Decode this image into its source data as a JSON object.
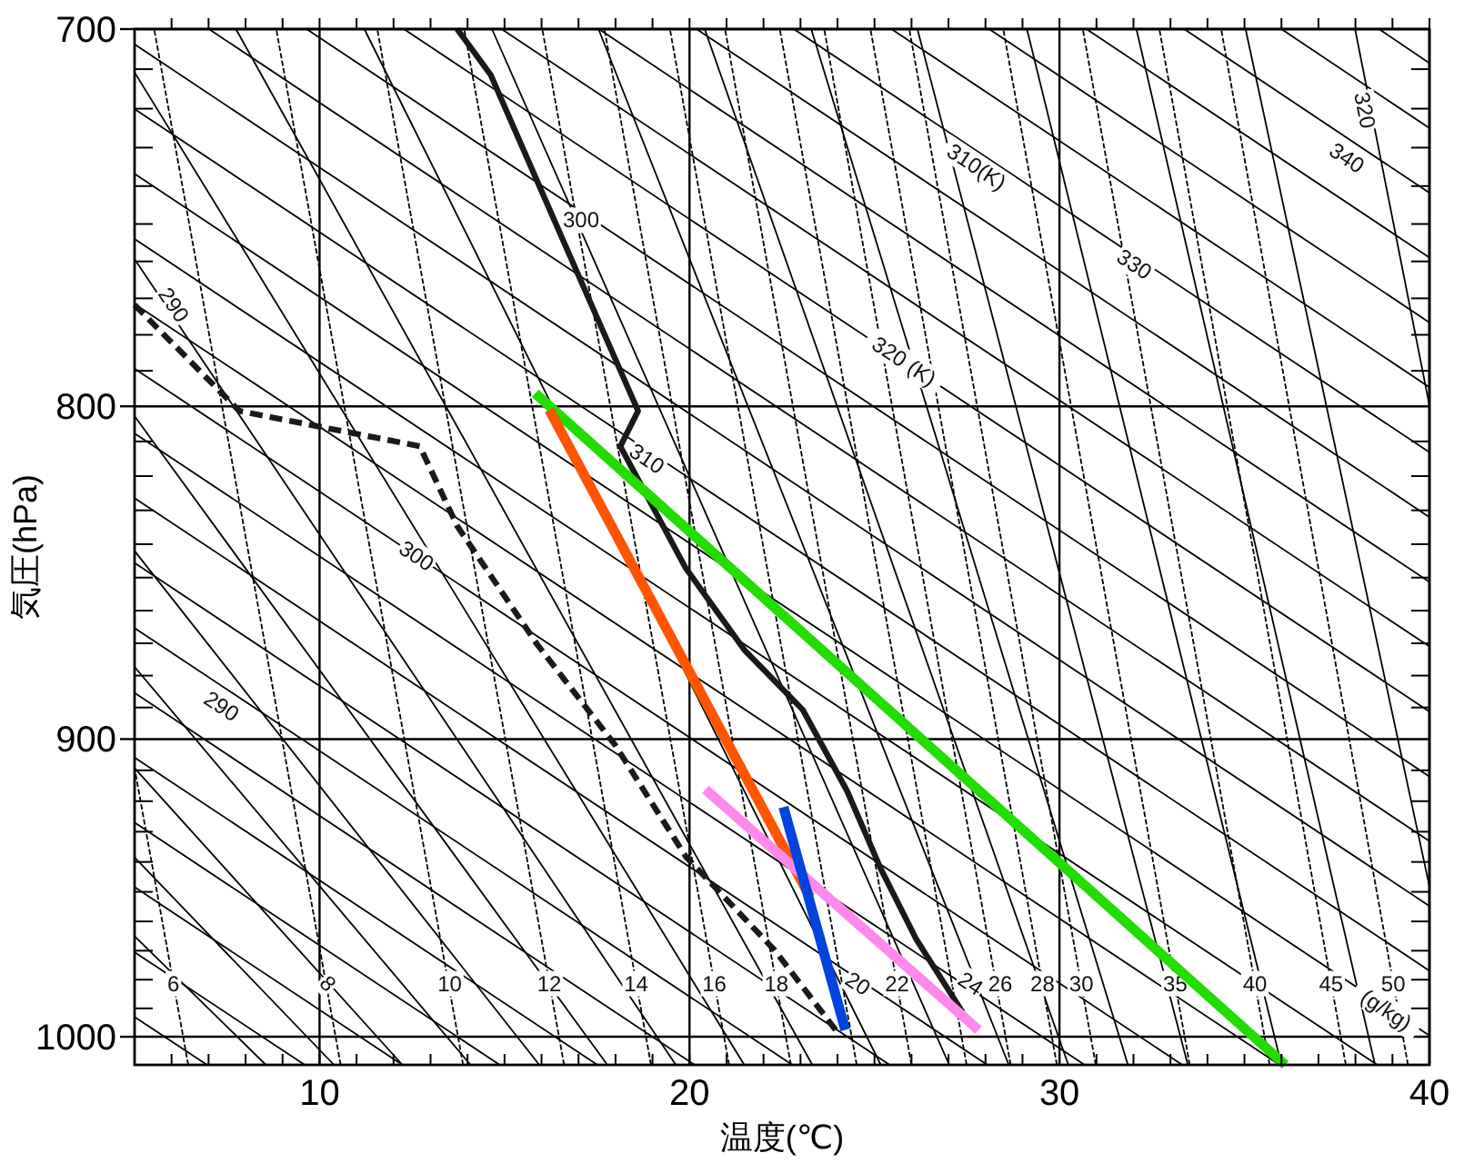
{
  "chart_data": {
    "type": "line",
    "xlabel": "温度(℃)",
    "ylabel": "気圧(hPa)",
    "xlim": [
      5,
      40
    ],
    "ylim": [
      1010,
      700
    ],
    "log": "y",
    "grid": true,
    "xticks": [
      {
        "value": 6,
        "label": null
      },
      {
        "value": 7,
        "label": null
      },
      {
        "value": 8,
        "label": null
      },
      {
        "value": 9,
        "label": null
      },
      10,
      {
        "value": 11,
        "label": null
      },
      {
        "value": 12,
        "label": null
      },
      {
        "value": 13,
        "label": null
      },
      {
        "value": 14,
        "label": null
      },
      {
        "value": 15,
        "label": null
      },
      {
        "value": 16,
        "label": null
      },
      {
        "value": 17,
        "label": null
      },
      {
        "value": 18,
        "label": null
      },
      {
        "value": 19,
        "label": null
      },
      20,
      {
        "value": 21,
        "label": null
      },
      {
        "value": 22,
        "label": null
      },
      {
        "value": 23,
        "label": null
      },
      {
        "value": 24,
        "label": null
      },
      {
        "value": 25,
        "label": null
      },
      {
        "value": 26,
        "label": null
      },
      {
        "value": 27,
        "label": null
      },
      {
        "value": 28,
        "label": null
      },
      {
        "value": 29,
        "label": null
      },
      30,
      {
        "value": 31,
        "label": null
      },
      {
        "value": 32,
        "label": null
      },
      {
        "value": 33,
        "label": null
      },
      {
        "value": 34,
        "label": null
      },
      {
        "value": 35,
        "label": null
      },
      {
        "value": 36,
        "label": null
      },
      {
        "value": 37,
        "label": null
      },
      {
        "value": 38,
        "label": null
      },
      {
        "value": 39,
        "label": null
      },
      40
    ],
    "yticks": [
      700,
      {
        "value": 710,
        "label": null
      },
      {
        "value": 720,
        "label": null
      },
      {
        "value": 730,
        "label": null
      },
      {
        "value": 740,
        "label": null
      },
      {
        "value": 750,
        "label": null
      },
      {
        "value": 760,
        "label": null
      },
      {
        "value": 770,
        "label": null
      },
      {
        "value": 780,
        "label": null
      },
      {
        "value": 790,
        "label": null
      },
      800,
      {
        "value": 810,
        "label": null
      },
      {
        "value": 820,
        "label": null
      },
      {
        "value": 830,
        "label": null
      },
      {
        "value": 840,
        "label": null
      },
      {
        "value": 850,
        "label": null
      },
      {
        "value": 860,
        "label": null
      },
      {
        "value": 870,
        "label": null
      },
      {
        "value": 880,
        "label": null
      },
      {
        "value": 890,
        "label": null
      },
      900,
      {
        "value": 910,
        "label": null
      },
      {
        "value": 920,
        "label": null
      },
      {
        "value": 930,
        "label": null
      },
      {
        "value": 940,
        "label": null
      },
      {
        "value": 950,
        "label": null
      },
      {
        "value": 960,
        "label": null
      },
      {
        "value": 970,
        "label": null
      },
      {
        "value": 980,
        "label": null
      },
      {
        "value": 990,
        "label": null
      },
      1000,
      {
        "value": 1010,
        "label": null
      }
    ],
    "annotations": [
      {
        "text": "290",
        "x": 7.35,
        "y": 889.6
      },
      {
        "text": "300",
        "x": 12.62,
        "y": 843.5
      },
      {
        "text": "310",
        "x": 18.85,
        "y": 815
      },
      {
        "text": "320 (K)",
        "x": 25.8,
        "y": 787.4
      },
      {
        "text": "330",
        "x": 32.02,
        "y": 760.8
      },
      {
        "text": "340",
        "x": 37.77,
        "y": 732.7
      },
      {
        "text": "290",
        "x": 6.05,
        "y": 771.8
      },
      {
        "text": "300",
        "x": 17.07,
        "y": 749
      },
      {
        "text": "310(K)",
        "x": 27.76,
        "y": 735
      },
      {
        "text": "320",
        "x": 38.25,
        "y": 720.4
      },
      {
        "text": "6",
        "x": 6.05,
        "y": 981.4
      },
      {
        "text": "8",
        "x": 10.22,
        "y": 981.4
      },
      {
        "text": "10",
        "x": 13.52,
        "y": 981.4
      },
      {
        "text": "12",
        "x": 16.21,
        "y": 981.4
      },
      {
        "text": "14",
        "x": 18.56,
        "y": 981.4
      },
      {
        "text": "16",
        "x": 20.67,
        "y": 981.4
      },
      {
        "text": "18",
        "x": 22.35,
        "y": 981.4
      },
      {
        "text": "20",
        "x": 24.55,
        "y": 981.4
      },
      {
        "text": "22",
        "x": 25.61,
        "y": 981.4
      },
      {
        "text": "24",
        "x": 27.6,
        "y": 981.4
      },
      {
        "text": "26",
        "x": 28.4,
        "y": 981.4
      },
      {
        "text": "28",
        "x": 29.54,
        "y": 981.4
      },
      {
        "text": "30",
        "x": 30.59,
        "y": 981.4
      },
      {
        "text": "35",
        "x": 33.13,
        "y": 981.4
      },
      {
        "text": "40",
        "x": 35.28,
        "y": 981.4
      },
      {
        "text": "45",
        "x": 37.34,
        "y": 981.4
      },
      {
        "text": "50",
        "x": 39.02,
        "y": 981.4
      },
      {
        "text": "(g/kg)",
        "x": 38.83,
        "y": 990.6
      }
    ],
    "series": [
      {
        "color": "#000000",
        "x": [
          6.96,
          5
        ],
        "values": [
          1010,
          993
        ]
      },
      {
        "color": "#000000",
        "x": [
          9.6,
          5
        ],
        "values": [
          1010,
          970.5
        ]
      },
      {
        "color": "#000000",
        "x": [
          12.24,
          5
        ],
        "values": [
          1010,
          948.4
        ]
      },
      {
        "color": "#000000",
        "x": [
          14.87,
          5
        ],
        "values": [
          1010,
          927
        ]
      },
      {
        "color": "#000000",
        "x": [
          17.51,
          5
        ],
        "values": [
          1010,
          905.9
        ]
      },
      {
        "color": "#000000",
        "x": [
          20.14,
          5
        ],
        "values": [
          1010,
          885.4
        ]
      },
      {
        "color": "#000000",
        "x": [
          22.78,
          5
        ],
        "values": [
          1010,
          865.3
        ]
      },
      {
        "color": "#000000",
        "x": [
          25.41,
          5
        ],
        "values": [
          1010,
          845.6
        ]
      },
      {
        "color": "#000000",
        "x": [
          28.05,
          5
        ],
        "values": [
          1010,
          826.4
        ]
      },
      {
        "color": "#000000",
        "x": [
          30.68,
          5
        ],
        "values": [
          1010,
          807.7
        ]
      },
      {
        "color": "#000000",
        "x": [
          33.32,
          5
        ],
        "values": [
          1010,
          789.4
        ]
      },
      {
        "color": "#000000",
        "x": [
          35.95,
          5
        ],
        "values": [
          1010,
          771.5
        ]
      },
      {
        "color": "#000000",
        "x": [
          38.59,
          5
        ],
        "values": [
          1010,
          754
        ]
      },
      {
        "color": "#000000",
        "x": [
          40,
          5
        ],
        "values": [
          999.6,
          736.8
        ]
      },
      {
        "color": "#000000",
        "x": [
          40,
          5
        ],
        "values": [
          976.9,
          720.1
        ]
      },
      {
        "color": "#000000",
        "x": [
          40,
          5
        ],
        "values": [
          954.8,
          703.8
        ]
      },
      {
        "color": "#000000",
        "x": [
          40,
          7.01
        ],
        "values": [
          933.1,
          700
        ]
      },
      {
        "color": "#000000",
        "x": [
          40,
          9.65
        ],
        "values": [
          912,
          700
        ]
      },
      {
        "color": "#000000",
        "x": [
          40,
          12.28
        ],
        "values": [
          891.3,
          700
        ]
      },
      {
        "color": "#000000",
        "x": [
          40,
          14.92
        ],
        "values": [
          871,
          700
        ]
      },
      {
        "color": "#000000",
        "x": [
          40,
          17.55
        ],
        "values": [
          851.3,
          700
        ]
      },
      {
        "color": "#000000",
        "x": [
          40,
          20.19
        ],
        "values": [
          832,
          700
        ]
      },
      {
        "color": "#000000",
        "x": [
          40,
          22.82
        ],
        "values": [
          813.1,
          700
        ]
      },
      {
        "color": "#000000",
        "x": [
          40,
          25.46
        ],
        "values": [
          794.6,
          700
        ]
      },
      {
        "color": "#000000",
        "x": [
          40,
          28.1
        ],
        "values": [
          776.6,
          700
        ]
      },
      {
        "color": "#000000",
        "x": [
          40,
          30.73
        ],
        "values": [
          759,
          700
        ]
      },
      {
        "color": "#000000",
        "x": [
          40,
          33.37
        ],
        "values": [
          741.8,
          700
        ]
      },
      {
        "color": "#000000",
        "x": [
          40,
          36
        ],
        "values": [
          725,
          700
        ]
      },
      {
        "color": "#000000",
        "x": [
          40,
          38.64
        ],
        "values": [
          708.5,
          700
        ]
      },
      {
        "color": "#000000",
        "x": [
          8.55,
          5
        ],
        "values": [
          1010,
          965
        ]
      },
      {
        "color": "#000000",
        "x": [
          10.39,
          5
        ],
        "values": [
          1010,
          938.5
        ]
      },
      {
        "color": "#000000",
        "x": [
          12.24,
          5
        ],
        "values": [
          1010,
          909.3
        ]
      },
      {
        "color": "#000000",
        "x": [
          14.08,
          5
        ],
        "values": [
          1010,
          877.3
        ]
      },
      {
        "color": "#000000",
        "x": [
          15.94,
          5
        ],
        "values": [
          1010,
          842
        ]
      },
      {
        "color": "#000000",
        "x": [
          17.78,
          5
        ],
        "values": [
          1010,
          802.8
        ]
      },
      {
        "color": "#000000",
        "x": [
          19.63,
          5
        ],
        "values": [
          1010,
          759.4
        ]
      },
      {
        "color": "#000000",
        "x": [
          21.48,
          5
        ],
        "values": [
          1010,
          710.8
        ]
      },
      {
        "color": "#000000",
        "x": [
          23.32,
          7.74
        ],
        "values": [
          1010,
          700
        ]
      },
      {
        "color": "#000000",
        "x": [
          25.17,
          11.21
        ],
        "values": [
          1010,
          700
        ]
      },
      {
        "color": "#000000",
        "x": [
          27.02,
          14.66
        ],
        "values": [
          1010,
          700
        ]
      },
      {
        "color": "#000000",
        "x": [
          28.63,
          17.54
        ],
        "values": [
          1010,
          700
        ]
      },
      {
        "color": "#000000",
        "x": [
          30.24,
          20.41
        ],
        "values": [
          1010,
          700
        ]
      },
      {
        "color": "#000000",
        "x": [
          31.85,
          23.29
        ],
        "values": [
          1010,
          700
        ]
      },
      {
        "color": "#000000",
        "x": [
          33.47,
          26.16
        ],
        "values": [
          1010,
          700
        ]
      },
      {
        "color": "#000000",
        "x": [
          36,
          29.12
        ],
        "values": [
          1010,
          700
        ]
      },
      {
        "color": "#000000",
        "x": [
          38.53,
          32.08
        ],
        "values": [
          1010,
          700
        ]
      },
      {
        "color": "#000000",
        "x": [
          40,
          35.03
        ],
        "values": [
          948.2,
          700
        ]
      },
      {
        "color": "#000000",
        "x": [
          40,
          37.99
        ],
        "values": [
          799.8,
          700
        ]
      },
      {
        "color": "#000000",
        "line_style": "dashed",
        "x": [
          6.45,
          5
        ],
        "values": [
          1010,
          909.3
        ]
      },
      {
        "color": "#000000",
        "line_style": "dashed",
        "x": [
          10.57,
          5.53
        ],
        "values": [
          1010,
          700
        ]
      },
      {
        "color": "#000000",
        "line_style": "dashed",
        "x": [
          13.88,
          8.83
        ],
        "values": [
          1010,
          700
        ]
      },
      {
        "color": "#000000",
        "line_style": "dashed",
        "x": [
          16.61,
          11.56
        ],
        "values": [
          1010,
          700
        ]
      },
      {
        "color": "#000000",
        "line_style": "dashed",
        "x": [
          18.96,
          13.91
        ],
        "values": [
          1010,
          700
        ]
      },
      {
        "color": "#000000",
        "line_style": "dashed",
        "x": [
          21.07,
          16.02
        ],
        "values": [
          1010,
          700
        ]
      },
      {
        "color": "#000000",
        "line_style": "dashed",
        "x": [
          22.74,
          17.7
        ],
        "values": [
          1010,
          700
        ]
      },
      {
        "color": "#000000",
        "line_style": "dashed",
        "x": [
          24.52,
          19.47
        ],
        "values": [
          1010,
          700
        ]
      },
      {
        "color": "#000000",
        "line_style": "dashed",
        "x": [
          26,
          20.96
        ],
        "values": [
          1010,
          700
        ]
      },
      {
        "color": "#000000",
        "line_style": "dashed",
        "x": [
          27.49,
          22.44
        ],
        "values": [
          1010,
          700
        ]
      },
      {
        "color": "#000000",
        "line_style": "dashed",
        "x": [
          28.68,
          23.64
        ],
        "values": [
          1010,
          700
        ]
      },
      {
        "color": "#000000",
        "line_style": "dashed",
        "x": [
          29.93,
          24.89
        ],
        "values": [
          1010,
          700
        ]
      },
      {
        "color": "#000000",
        "line_style": "dashed",
        "x": [
          30.98,
          25.94
        ],
        "values": [
          1010,
          700
        ]
      },
      {
        "color": "#000000",
        "line_style": "dashed",
        "x": [
          33.52,
          28.48
        ],
        "values": [
          1010,
          700
        ]
      },
      {
        "color": "#000000",
        "line_style": "dashed",
        "x": [
          35.68,
          30.63
        ],
        "values": [
          1010,
          700
        ]
      },
      {
        "color": "#000000",
        "line_style": "dashed",
        "x": [
          37.74,
          32.7
        ],
        "values": [
          1010,
          700
        ]
      },
      {
        "color": "#000000",
        "line_style": "dashed",
        "x": [
          39.42,
          34.37
        ],
        "values": [
          1010,
          700
        ]
      },
      {
        "color": "#1a1a1a",
        "x": [
          13.72,
          14.63,
          16.55,
          18.61,
          18.13,
          19.9,
          21.48,
          23.06,
          24.26,
          25.17,
          26.13,
          27.38
        ],
        "values": [
          700,
          711.5,
          753.6,
          801.3,
          811.4,
          847.2,
          872,
          890.7,
          916.7,
          942.3,
          966.1,
          991.3
        ]
      },
      {
        "color": "#1a1a1a",
        "line_style": "dashed",
        "x": [
          5,
          7.83,
          12.71,
          13.72,
          15.88,
          17.99,
          19.9,
          22.3,
          24.02
        ],
        "values": [
          771.8,
          801.3,
          811.4,
          834.6,
          870.3,
          901.9,
          938.2,
          969.8,
          998.8
        ]
      },
      {
        "color": "#22dd00",
        "x": [
          15.83,
          36.1
        ],
        "values": [
          796.3,
          1010
        ]
      },
      {
        "color": "#ff5500",
        "x": [
          16.21,
          23.26
        ],
        "values": [
          801,
          951.8
        ]
      },
      {
        "color": "#ff88ee",
        "x": [
          20.43,
          27.81
        ],
        "values": [
          916.2,
          997.6
        ]
      },
      {
        "color": "#0044dd",
        "x": [
          22.54,
          24.21
        ],
        "values": [
          921.9,
          997.6
        ]
      }
    ]
  }
}
